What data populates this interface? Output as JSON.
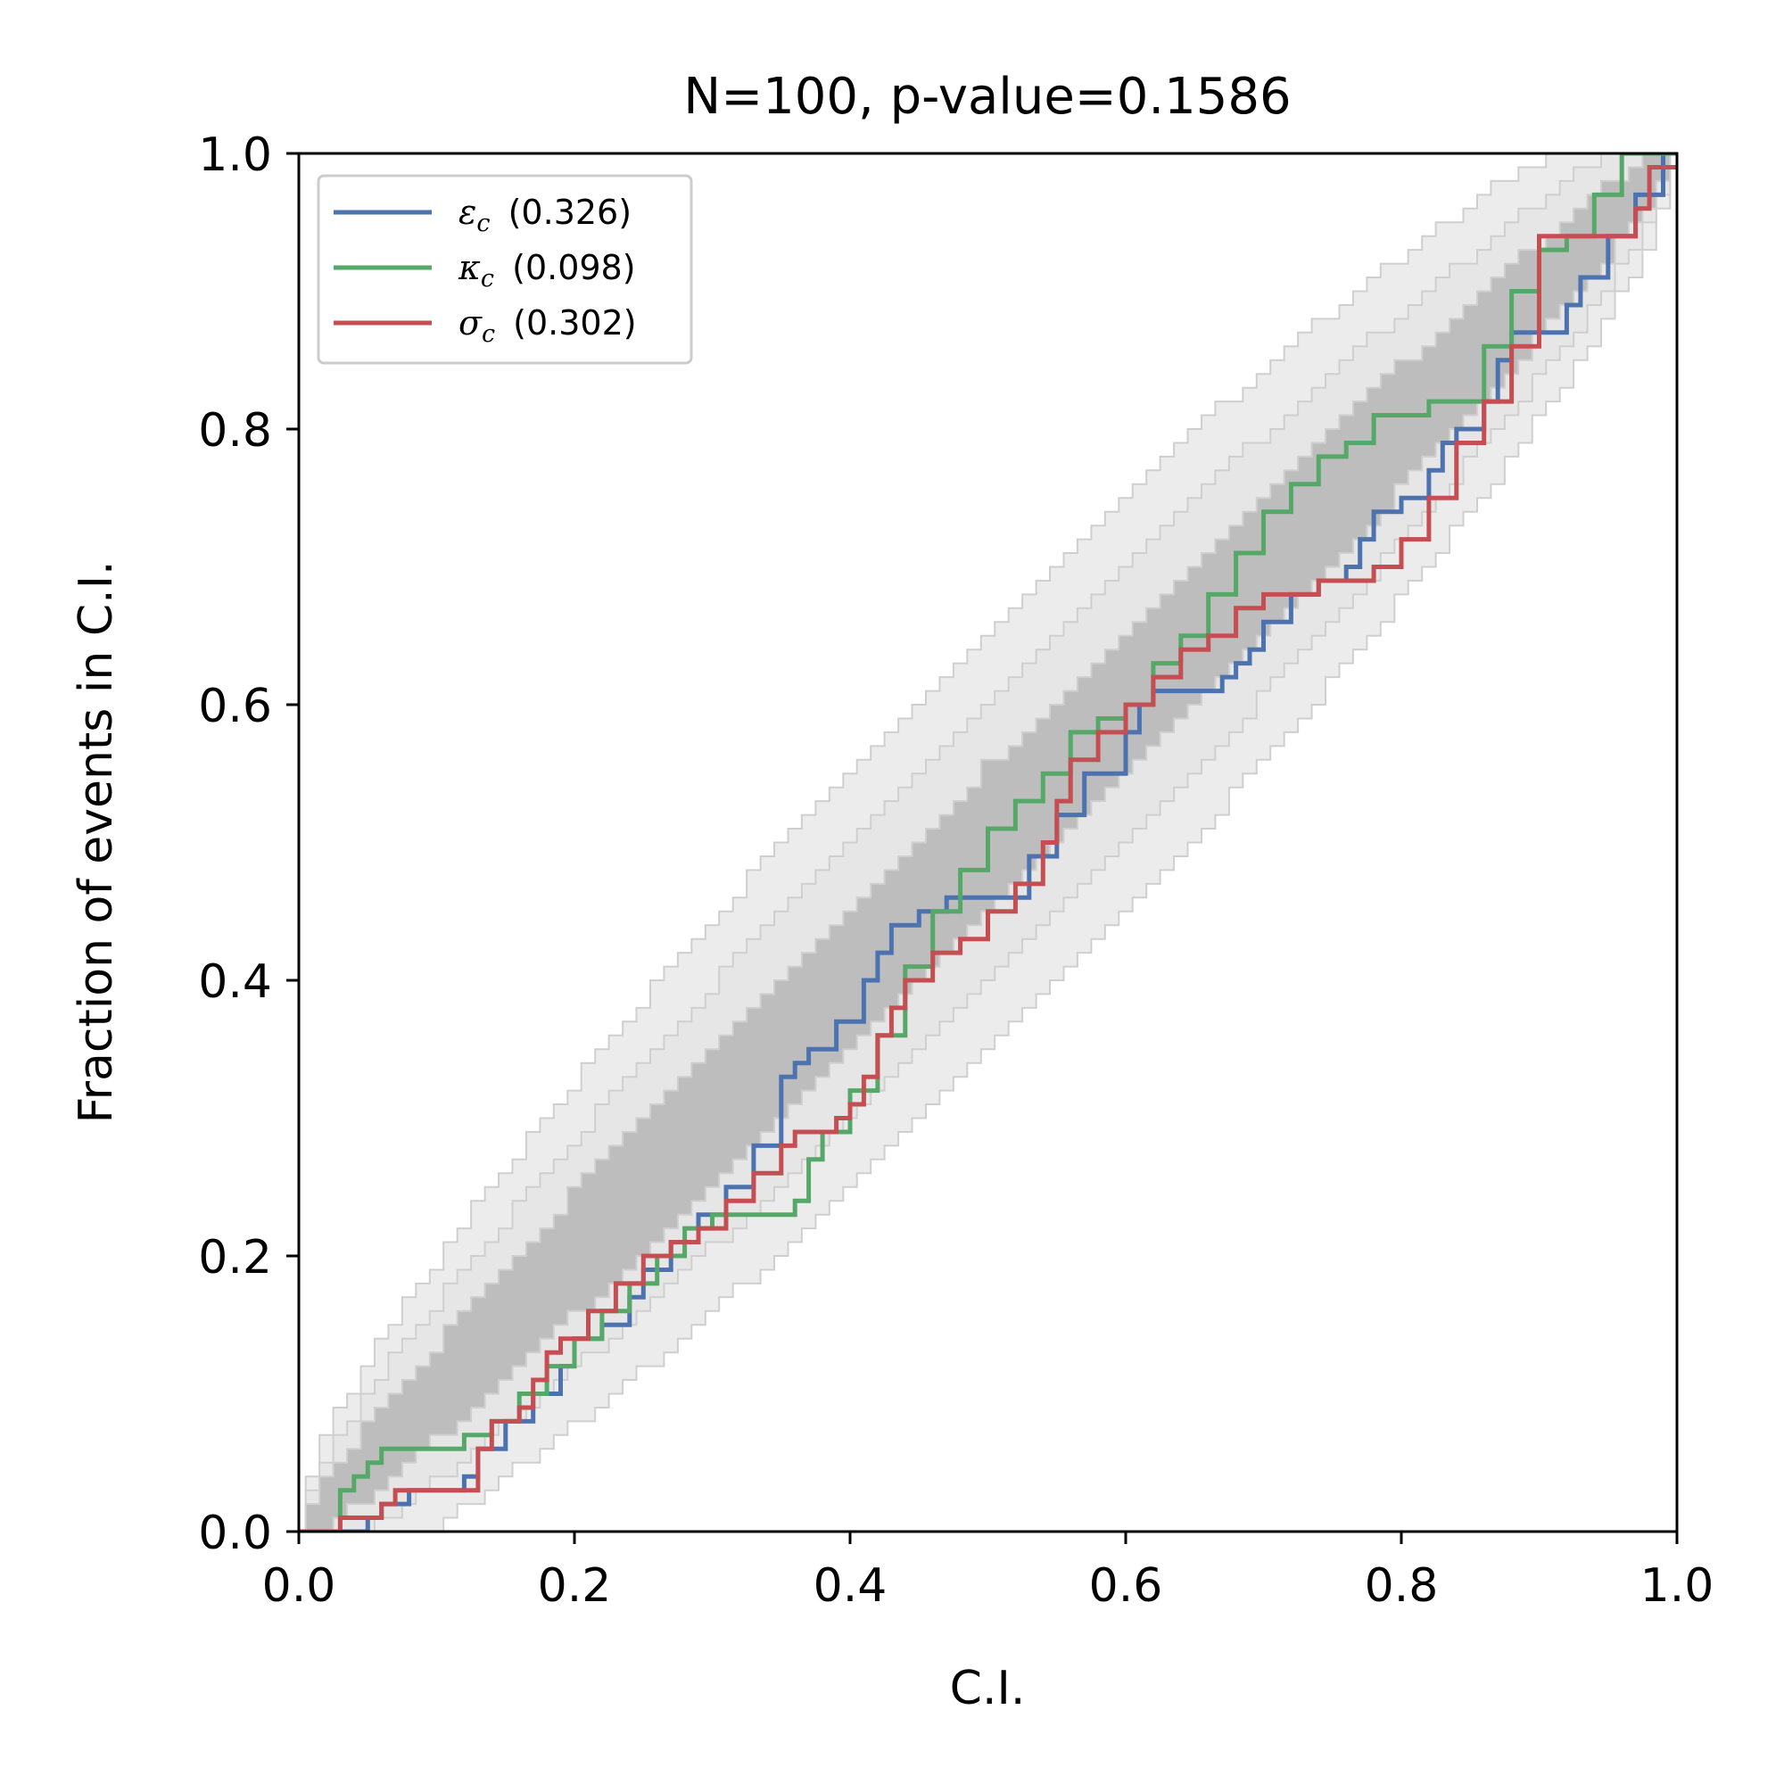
{
  "chart_data": {
    "type": "line",
    "title": "N=100, p-value=0.1586",
    "xlabel": "C.I.",
    "ylabel": "Fraction of events in C.I.",
    "xlim": [
      0,
      1
    ],
    "ylim": [
      0,
      1
    ],
    "xticks": [
      "0.0",
      "0.2",
      "0.4",
      "0.6",
      "0.8",
      "1.0"
    ],
    "yticks": [
      "0.0",
      "0.2",
      "0.4",
      "0.6",
      "0.8",
      "1.0"
    ],
    "grid": false,
    "legend_position": "upper-left",
    "n_events": 100,
    "bands": {
      "description": "binomial confidence bands around diagonal",
      "levels": [
        0.68,
        0.95,
        0.997
      ],
      "colors": [
        "#bdbdbd",
        "#e6e6e6",
        "#ececec"
      ]
    },
    "series": [
      {
        "name": "ε",
        "subscript": "c",
        "value": "(0.326)",
        "color": "#4c72b0",
        "x": [
          0,
          0.02,
          0.05,
          0.06,
          0.08,
          0.1,
          0.12,
          0.13,
          0.15,
          0.17,
          0.19,
          0.2,
          0.22,
          0.24,
          0.25,
          0.27,
          0.29,
          0.31,
          0.33,
          0.35,
          0.36,
          0.37,
          0.39,
          0.41,
          0.42,
          0.43,
          0.45,
          0.46,
          0.47,
          0.52,
          0.53,
          0.55,
          0.57,
          0.6,
          0.61,
          0.62,
          0.63,
          0.65,
          0.67,
          0.68,
          0.69,
          0.7,
          0.72,
          0.74,
          0.76,
          0.77,
          0.78,
          0.8,
          0.82,
          0.83,
          0.84,
          0.86,
          0.87,
          0.88,
          0.9,
          0.92,
          0.93,
          0.95,
          0.97,
          0.99,
          1.0
        ],
        "y": [
          0,
          0.0,
          0.01,
          0.02,
          0.03,
          0.03,
          0.04,
          0.06,
          0.08,
          0.1,
          0.12,
          0.14,
          0.15,
          0.17,
          0.19,
          0.21,
          0.23,
          0.25,
          0.28,
          0.33,
          0.34,
          0.35,
          0.37,
          0.4,
          0.42,
          0.44,
          0.45,
          0.45,
          0.46,
          0.46,
          0.49,
          0.52,
          0.55,
          0.58,
          0.6,
          0.61,
          0.61,
          0.61,
          0.62,
          0.63,
          0.64,
          0.66,
          0.68,
          0.69,
          0.7,
          0.72,
          0.74,
          0.75,
          0.77,
          0.79,
          0.8,
          0.82,
          0.85,
          0.87,
          0.87,
          0.89,
          0.91,
          0.94,
          0.97,
          1.0,
          1.0
        ]
      },
      {
        "name": "κ",
        "subscript": "c",
        "value": "(0.098)",
        "color": "#55a868",
        "x": [
          0,
          0.03,
          0.04,
          0.05,
          0.06,
          0.08,
          0.1,
          0.12,
          0.14,
          0.16,
          0.18,
          0.2,
          0.22,
          0.24,
          0.26,
          0.28,
          0.3,
          0.32,
          0.34,
          0.36,
          0.37,
          0.38,
          0.4,
          0.42,
          0.44,
          0.46,
          0.48,
          0.5,
          0.52,
          0.54,
          0.56,
          0.58,
          0.6,
          0.62,
          0.64,
          0.66,
          0.68,
          0.7,
          0.72,
          0.74,
          0.76,
          0.78,
          0.8,
          0.82,
          0.84,
          0.86,
          0.88,
          0.9,
          0.92,
          0.94,
          0.96,
          0.98,
          1.0
        ],
        "y": [
          0,
          0.03,
          0.04,
          0.05,
          0.06,
          0.06,
          0.06,
          0.07,
          0.08,
          0.1,
          0.12,
          0.14,
          0.16,
          0.18,
          0.2,
          0.22,
          0.23,
          0.23,
          0.23,
          0.24,
          0.27,
          0.29,
          0.32,
          0.36,
          0.41,
          0.45,
          0.48,
          0.51,
          0.53,
          0.55,
          0.58,
          0.59,
          0.6,
          0.63,
          0.65,
          0.68,
          0.71,
          0.74,
          0.76,
          0.78,
          0.79,
          0.81,
          0.81,
          0.82,
          0.82,
          0.86,
          0.9,
          0.93,
          0.94,
          0.97,
          1.0,
          1.0,
          1.0
        ]
      },
      {
        "name": "σ",
        "subscript": "c",
        "value": "(0.302)",
        "color": "#c44e52",
        "x": [
          0,
          0.02,
          0.03,
          0.04,
          0.06,
          0.07,
          0.09,
          0.12,
          0.13,
          0.14,
          0.16,
          0.17,
          0.18,
          0.19,
          0.21,
          0.23,
          0.25,
          0.27,
          0.29,
          0.31,
          0.33,
          0.35,
          0.36,
          0.38,
          0.39,
          0.4,
          0.41,
          0.42,
          0.43,
          0.44,
          0.46,
          0.48,
          0.5,
          0.52,
          0.54,
          0.55,
          0.56,
          0.58,
          0.6,
          0.62,
          0.64,
          0.66,
          0.68,
          0.7,
          0.72,
          0.74,
          0.76,
          0.78,
          0.8,
          0.82,
          0.84,
          0.86,
          0.88,
          0.9,
          0.94,
          0.97,
          0.98,
          1.0
        ],
        "y": [
          0,
          0.0,
          0.01,
          0.01,
          0.02,
          0.03,
          0.03,
          0.03,
          0.06,
          0.08,
          0.09,
          0.11,
          0.13,
          0.14,
          0.16,
          0.18,
          0.2,
          0.21,
          0.22,
          0.24,
          0.26,
          0.28,
          0.29,
          0.29,
          0.3,
          0.31,
          0.33,
          0.36,
          0.38,
          0.4,
          0.42,
          0.43,
          0.45,
          0.47,
          0.5,
          0.53,
          0.56,
          0.58,
          0.6,
          0.62,
          0.64,
          0.65,
          0.67,
          0.68,
          0.68,
          0.69,
          0.69,
          0.7,
          0.72,
          0.75,
          0.79,
          0.82,
          0.86,
          0.94,
          0.94,
          0.96,
          0.99,
          0.99
        ]
      }
    ]
  }
}
